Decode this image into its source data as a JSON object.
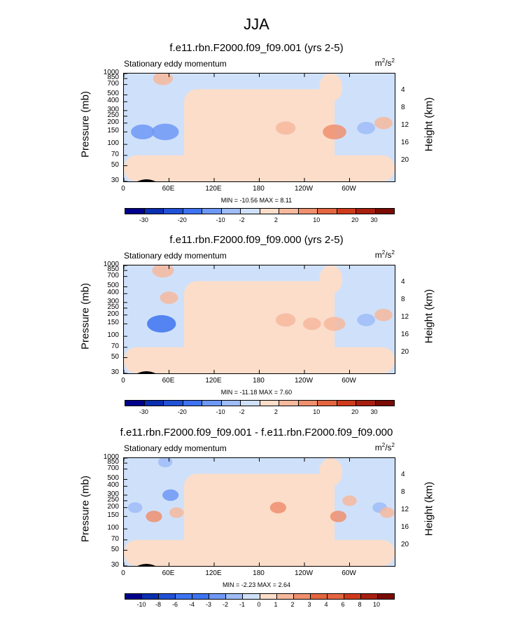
{
  "title": "JJA",
  "field_label": "Stationary eddy momentum",
  "units_base": "m",
  "units_exp1": "2",
  "units_mid": "/s",
  "units_exp2": "2",
  "y_axis_label": "Pressure (mb)",
  "y2_axis_label": "Height (km)",
  "colors": {
    "shade": [
      "#00008b",
      "#0a2fb0",
      "#2151d6",
      "#3d73f0",
      "#6e98f5",
      "#9fbcf7",
      "#cfe1fa",
      "#fbddc9",
      "#f6b99d",
      "#ef8f6e",
      "#e4653f",
      "#cf3a1c",
      "#a81f0f",
      "#7a0b05"
    ]
  },
  "chart_data": [
    {
      "type": "heatmap",
      "title": "f.e11.rbn.F2000.f09_f09.001 (yrs 2-5)",
      "xlabel": "",
      "ylabel": "Pressure (mb)",
      "y2label": "Height (km)",
      "x_ticks": [
        "0",
        "60E",
        "120E",
        "180",
        "120W",
        "60W"
      ],
      "x_tick_lon": [
        0,
        60,
        120,
        180,
        240,
        300
      ],
      "xlim": [
        0,
        360
      ],
      "y_ticks": [
        "30",
        "50",
        "70",
        "100",
        "150",
        "200",
        "250",
        "300",
        "400",
        "500",
        "700",
        "850",
        "1000"
      ],
      "y2_ticks": [
        "20",
        "16",
        "12",
        "8",
        "4"
      ],
      "ylim": [
        1000,
        30
      ],
      "stats": "MIN = -10.56  MAX =  8.11",
      "colorbar_labels": [
        "-30",
        "-20",
        "-10",
        "-2",
        "2",
        "10",
        "20",
        "30"
      ],
      "anomalies": [
        {
          "lon": 25,
          "p": 150,
          "value": -6
        },
        {
          "lon": 55,
          "p": 150,
          "value": -8
        },
        {
          "lon": 215,
          "p": 170,
          "value": 4
        },
        {
          "lon": 280,
          "p": 150,
          "value": 6
        },
        {
          "lon": 322,
          "p": 170,
          "value": -3
        },
        {
          "lon": 345,
          "p": 200,
          "value": 3
        },
        {
          "lon": 52,
          "p": 850,
          "value": 4
        }
      ]
    },
    {
      "type": "heatmap",
      "title": "f.e11.rbn.F2000.f09_f09.000 (yrs 2-5)",
      "xlabel": "",
      "ylabel": "Pressure (mb)",
      "y2label": "Height (km)",
      "x_ticks": [
        "0",
        "60E",
        "120E",
        "180",
        "120W",
        "60W"
      ],
      "x_tick_lon": [
        0,
        60,
        120,
        180,
        240,
        300
      ],
      "xlim": [
        0,
        360
      ],
      "y_ticks": [
        "30",
        "50",
        "70",
        "100",
        "150",
        "200",
        "250",
        "300",
        "400",
        "500",
        "700",
        "850",
        "1000"
      ],
      "y2_ticks": [
        "20",
        "16",
        "12",
        "8",
        "4"
      ],
      "ylim": [
        1000,
        30
      ],
      "stats": "MIN = -11.18  MAX =  7.60",
      "colorbar_labels": [
        "-30",
        "-20",
        "-10",
        "-2",
        "2",
        "10",
        "20",
        "30"
      ],
      "anomalies": [
        {
          "lon": 50,
          "p": 150,
          "value": -9
        },
        {
          "lon": 215,
          "p": 170,
          "value": 4
        },
        {
          "lon": 250,
          "p": 150,
          "value": 3
        },
        {
          "lon": 280,
          "p": 150,
          "value": 5
        },
        {
          "lon": 322,
          "p": 170,
          "value": -3
        },
        {
          "lon": 345,
          "p": 200,
          "value": 3
        },
        {
          "lon": 52,
          "p": 850,
          "value": 5
        },
        {
          "lon": 60,
          "p": 350,
          "value": 3
        }
      ]
    },
    {
      "type": "heatmap",
      "title": "f.e11.rbn.F2000.f09_f09.001 - f.e11.rbn.F2000.f09_f09.000",
      "xlabel": "",
      "ylabel": "Pressure (mb)",
      "y2label": "Height (km)",
      "x_ticks": [
        "0",
        "60E",
        "120E",
        "180",
        "120W",
        "60W"
      ],
      "x_tick_lon": [
        0,
        60,
        120,
        180,
        240,
        300
      ],
      "xlim": [
        0,
        360
      ],
      "y_ticks": [
        "30",
        "50",
        "70",
        "100",
        "150",
        "200",
        "250",
        "300",
        "400",
        "500",
        "700",
        "850",
        "1000"
      ],
      "y2_ticks": [
        "20",
        "16",
        "12",
        "8",
        "4"
      ],
      "ylim": [
        1000,
        30
      ],
      "stats": "MIN = -2.23  MAX =  2.64",
      "colorbar_labels": [
        "-10",
        "-8",
        "-6",
        "-4",
        "-3",
        "-2",
        "-1",
        "0",
        "1",
        "2",
        "3",
        "4",
        "6",
        "8",
        "10"
      ],
      "anomalies": [
        {
          "lon": 40,
          "p": 150,
          "value": 2
        },
        {
          "lon": 15,
          "p": 200,
          "value": -1
        },
        {
          "lon": 62,
          "p": 300,
          "value": -2
        },
        {
          "lon": 70,
          "p": 170,
          "value": 1
        },
        {
          "lon": 205,
          "p": 200,
          "value": 2
        },
        {
          "lon": 285,
          "p": 150,
          "value": 2
        },
        {
          "lon": 300,
          "p": 250,
          "value": 1
        },
        {
          "lon": 340,
          "p": 200,
          "value": -1
        },
        {
          "lon": 350,
          "p": 170,
          "value": 1
        },
        {
          "lon": 55,
          "p": 880,
          "value": -1
        }
      ]
    }
  ]
}
